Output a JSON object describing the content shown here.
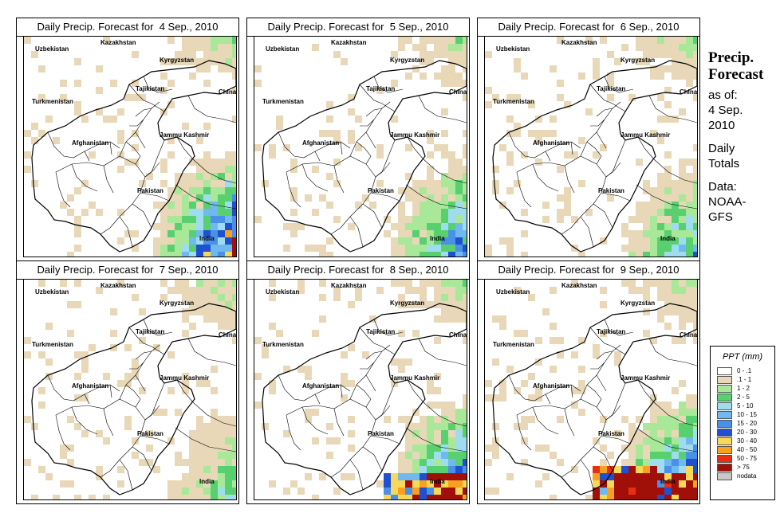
{
  "panels": [
    {
      "title": "Daily Precip. Forecast for  4 Sep., 2010"
    },
    {
      "title": "Daily Precip. Forecast for  5 Sep., 2010"
    },
    {
      "title": "Daily Precip. Forecast for  6 Sep., 2010"
    },
    {
      "title": "Daily Precip. Forecast for  7 Sep., 2010"
    },
    {
      "title": "Daily Precip. Forecast for  8 Sep., 2010"
    },
    {
      "title": "Daily Precip. Forecast for  9 Sep., 2010"
    }
  ],
  "map_labels": {
    "uzbekistan": "Uzbekistan",
    "kazakhstan": "Kazakhstan",
    "kyrgyzstan": "Kyrgyzstan",
    "tajikistan": "Tajikistan",
    "turkmenistan": "Turkmenistan",
    "china": "China",
    "afghanistan": "Afghanistan",
    "jammu_kashmir": "Jammu Kashmir",
    "pakistan": "Pakistan",
    "india": "India"
  },
  "side": {
    "title_line1": "Precip.",
    "title_line2": "Forecast",
    "asof_line1": "as of:",
    "asof_line2": "4 Sep.",
    "asof_line3": "2010",
    "totals_line1": "Daily",
    "totals_line2": "Totals",
    "data_line1": "Data:",
    "data_line2": "NOAA-",
    "data_line3": "GFS"
  },
  "legend": {
    "title": "PPT (mm)",
    "items": [
      {
        "label": "0 - .1",
        "color": "#ffffff"
      },
      {
        "label": ".1 - 1",
        "color": "#e8d8b8"
      },
      {
        "label": "1 - 2",
        "color": "#a8e898"
      },
      {
        "label": "2 - 5",
        "color": "#58d070"
      },
      {
        "label": "5 - 10",
        "color": "#a0dcf0"
      },
      {
        "label": "10 - 15",
        "color": "#70b8f0"
      },
      {
        "label": "15 - 20",
        "color": "#4890e8"
      },
      {
        "label": "20 - 30",
        "color": "#2050d0"
      },
      {
        "label": "30 - 40",
        "color": "#f8d858"
      },
      {
        "label": "40 - 50",
        "color": "#f8a020"
      },
      {
        "label": "50 - 75",
        "color": "#e83010"
      },
      {
        "label": "> 75",
        "color": "#a01008"
      },
      {
        "label": "nodata",
        "color": "#c8c8c8"
      }
    ]
  }
}
